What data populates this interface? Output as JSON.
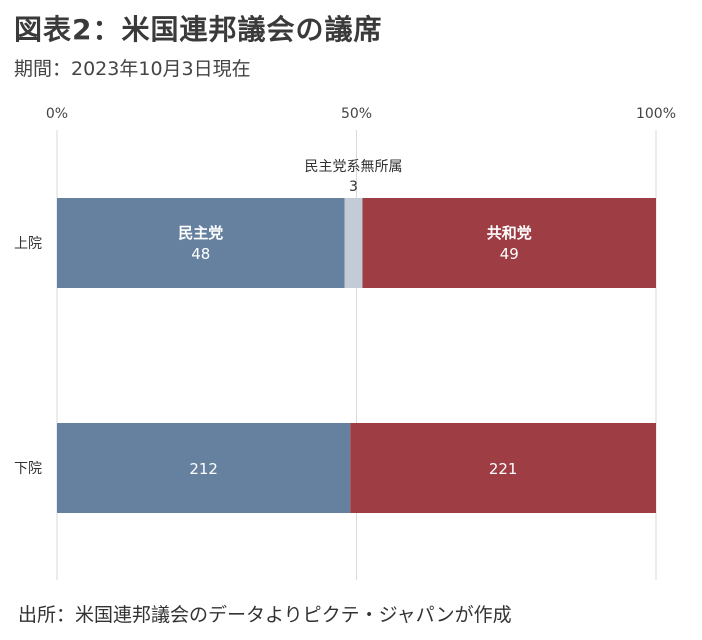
{
  "header": {
    "title": "図表2：米国連邦議会の議席",
    "subtitle": "期間：2023年10月3日現在"
  },
  "footer": {
    "source": "出所：米国連邦議会のデータよりピクテ・ジャパンが作成"
  },
  "chart_data": {
    "type": "bar",
    "orientation": "horizontal",
    "stacked": "percent",
    "title": "図表2：米国連邦議会の議席",
    "subtitle": "期間：2023年10月3日現在",
    "categories": [
      "上院",
      "下院"
    ],
    "x_ticks": [
      "0%",
      "50%",
      "100%"
    ],
    "xlim": [
      0,
      100
    ],
    "grid": true,
    "legend": "none",
    "series": [
      {
        "name": "民主党",
        "values": [
          48,
          212
        ],
        "color": "#66819f",
        "label_color": "#ffffff"
      },
      {
        "name": "民主党系無所属",
        "values": [
          3,
          0
        ],
        "color": "#c3cbd7",
        "label_color": "#333333"
      },
      {
        "name": "共和党",
        "values": [
          49,
          221
        ],
        "color": "#9f3d44",
        "label_color": "#ffffff"
      }
    ]
  }
}
